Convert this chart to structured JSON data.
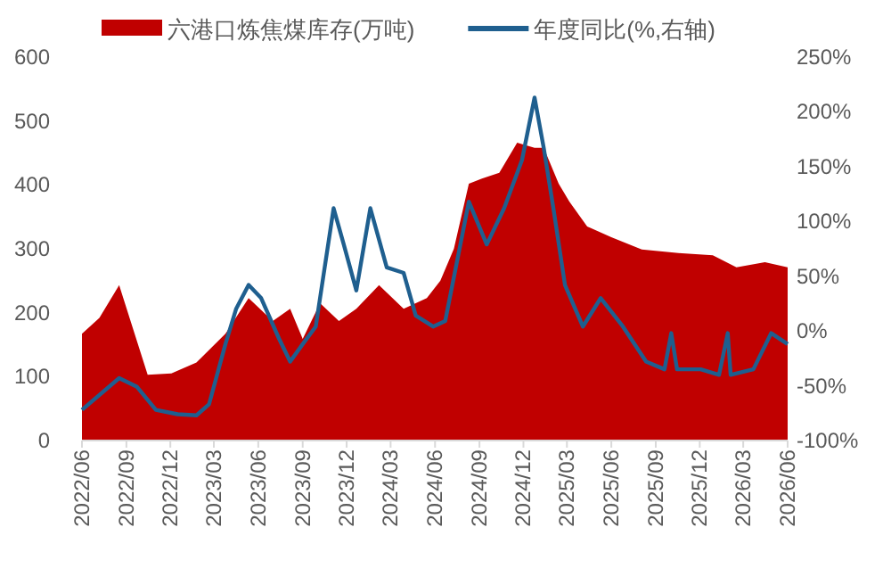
{
  "chart_data": {
    "type": "area",
    "legend": "top",
    "xlim": [
      "2022-06",
      "2026-06"
    ],
    "xticks": [
      {
        "value": "2022-06",
        "label": "2022/06"
      },
      {
        "value": "2022-09",
        "label": "2022/09"
      },
      {
        "value": "2022-12",
        "label": "2022/12"
      },
      {
        "value": "2023-03",
        "label": "2023/03"
      },
      {
        "value": "2023-06",
        "label": "2023/06"
      },
      {
        "value": "2023-09",
        "label": "2023/09"
      },
      {
        "value": "2023-12",
        "label": "2023/12"
      },
      {
        "value": "2024-03",
        "label": "2024/03"
      },
      {
        "value": "2024-06",
        "label": "2024/06"
      },
      {
        "value": "2024-09",
        "label": "2024/09"
      },
      {
        "value": "2024-12",
        "label": "2024/12"
      },
      {
        "value": "2025-03",
        "label": "2025/03"
      },
      {
        "value": "2025-06",
        "label": "2025/06"
      },
      {
        "value": "2025-09",
        "label": "2025/09"
      },
      {
        "value": "2025-12",
        "label": "2025/12"
      },
      {
        "value": "2026-03",
        "label": "2026/03"
      },
      {
        "value": "2026-06",
        "label": "2026/06"
      }
    ],
    "ylim": [
      0,
      600
    ],
    "yticks": [
      0,
      100,
      200,
      300,
      400,
      500,
      600
    ],
    "y2lim": [
      -100,
      250
    ],
    "y2ticks": [
      {
        "value": -100,
        "label": "-100%"
      },
      {
        "value": -50,
        "label": "-50%"
      },
      {
        "value": 0,
        "label": "0%"
      },
      {
        "value": 50,
        "label": "50%"
      },
      {
        "value": 100,
        "label": "100%"
      },
      {
        "value": 150,
        "label": "150%"
      },
      {
        "value": 200,
        "label": "200%"
      },
      {
        "value": 250,
        "label": "250%"
      }
    ],
    "series": [
      {
        "name": "六港口炼焦煤库存(万吨)",
        "type": "area",
        "color": "#c00000",
        "x": [
          "2022-06-01",
          "2022-07-07",
          "2022-08-17",
          "2022-10-15",
          "2022-12-03",
          "2023-01-24",
          "2023-03-25",
          "2023-05-12",
          "2023-07-01",
          "2023-08-06",
          "2023-09-01",
          "2023-10-07",
          "2023-11-15",
          "2023-12-21",
          "2024-02-06",
          "2024-03-28",
          "2024-05-15",
          "2024-06-12",
          "2024-07-10",
          "2024-08-10",
          "2024-09-06",
          "2024-10-12",
          "2024-11-18",
          "2024-12-24",
          "2025-01-12",
          "2025-02-12",
          "2025-03-06",
          "2025-04-12",
          "2025-06-01",
          "2025-08-03",
          "2025-10-25",
          "2025-12-28",
          "2026-02-15",
          "2026-04-15",
          "2026-06-01"
        ],
        "values": [
          167,
          192,
          243,
          103,
          105,
          122,
          167,
          223,
          187,
          206,
          159,
          215,
          187,
          206,
          243,
          206,
          223,
          250,
          300,
          402,
          410,
          419,
          466,
          458,
          458,
          402,
          374,
          335,
          318,
          299,
          293,
          290,
          271,
          279,
          271
        ]
      },
      {
        "name": "年度同比(%,右轴)",
        "type": "line",
        "axis": "y2",
        "color": "#1f5f8f",
        "x": [
          "2022-06-01",
          "2022-08-17",
          "2022-09-23",
          "2022-11-01",
          "2022-12-16",
          "2023-01-24",
          "2023-02-19",
          "2023-03-25",
          "2023-04-16",
          "2023-05-12",
          "2023-06-07",
          "2023-07-14",
          "2023-08-06",
          "2023-09-01",
          "2023-09-28",
          "2023-11-04",
          "2023-11-25",
          "2023-12-21",
          "2024-01-19",
          "2024-02-22",
          "2024-03-28",
          "2024-04-22",
          "2024-05-28",
          "2024-06-22",
          "2024-08-10",
          "2024-09-16",
          "2024-10-22",
          "2024-11-28",
          "2024-12-24",
          "2025-01-12",
          "2025-02-01",
          "2025-02-25",
          "2025-04-03",
          "2025-05-10",
          "2025-06-25",
          "2025-08-12",
          "2025-09-19",
          "2025-10-03",
          "2025-10-15",
          "2025-12-03",
          "2026-01-10",
          "2026-01-28",
          "2026-02-03",
          "2026-03-22",
          "2026-04-28",
          "2026-06-01"
        ],
        "values": [
          -72,
          -43,
          -51,
          -72,
          -76,
          -77,
          -67,
          -12,
          20,
          42,
          30,
          -7,
          -28,
          -12,
          4,
          112,
          79,
          37,
          112,
          58,
          53,
          14,
          4,
          9,
          118,
          79,
          112,
          156,
          213,
          167,
          112,
          42,
          4,
          30,
          4,
          -28,
          -35,
          -2,
          -35,
          -35,
          -40,
          -2,
          -40,
          -35,
          -2,
          -12
        ]
      }
    ]
  }
}
